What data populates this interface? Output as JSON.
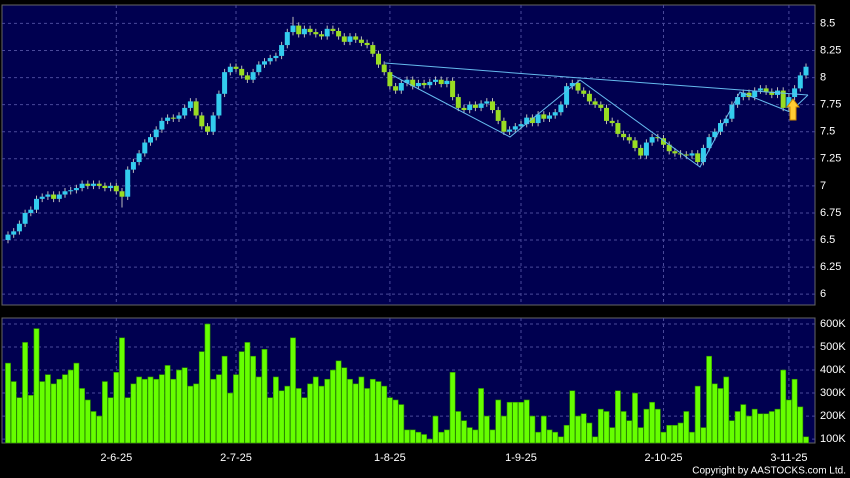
{
  "chart_data": {
    "type": "candlestick",
    "categories": [
      null,
      null,
      null,
      null,
      null,
      null,
      null,
      null,
      null,
      null,
      null,
      null,
      null,
      null,
      null,
      null,
      null,
      null,
      null,
      "2-6-25",
      null,
      null,
      null,
      null,
      null,
      null,
      null,
      null,
      null,
      null,
      null,
      null,
      null,
      null,
      null,
      null,
      null,
      null,
      null,
      null,
      "2-7-25",
      null,
      null,
      null,
      null,
      null,
      null,
      null,
      null,
      null,
      null,
      null,
      null,
      null,
      null,
      null,
      null,
      null,
      null,
      null,
      null,
      null,
      null,
      null,
      null,
      null,
      null,
      "1-8-25",
      null,
      null,
      null,
      null,
      null,
      null,
      null,
      null,
      null,
      null,
      null,
      null,
      null,
      null,
      null,
      null,
      null,
      null,
      null,
      null,
      null,
      null,
      "1-9-25",
      null,
      null,
      null,
      null,
      null,
      null,
      null,
      null,
      null,
      null,
      null,
      null,
      null,
      null,
      null,
      null,
      null,
      null,
      null,
      null,
      null,
      null,
      null,
      null,
      "2-10-25",
      null,
      null,
      null,
      null,
      null,
      null,
      null,
      null,
      null,
      null,
      null,
      null,
      null,
      null,
      null,
      null,
      null,
      null,
      null,
      null,
      null,
      "3-11-25",
      null,
      null,
      null
    ],
    "open": [
      6.5,
      6.55,
      6.58,
      6.65,
      6.75,
      6.78,
      6.88,
      6.9,
      6.92,
      6.88,
      6.92,
      6.95,
      6.96,
      6.98,
      7.02,
      7.0,
      7.02,
      7.0,
      6.98,
      7.0,
      6.95,
      6.9,
      7.15,
      7.22,
      7.3,
      7.4,
      7.45,
      7.52,
      7.6,
      7.63,
      7.62,
      7.65,
      7.72,
      7.78,
      7.65,
      7.55,
      7.5,
      7.65,
      7.85,
      8.05,
      8.1,
      8.08,
      8.02,
      7.98,
      8.05,
      8.12,
      8.15,
      8.18,
      8.2,
      8.3,
      8.42,
      8.48,
      8.4,
      8.45,
      8.42,
      8.4,
      8.38,
      8.45,
      8.43,
      8.38,
      8.33,
      8.38,
      8.35,
      8.32,
      8.3,
      8.22,
      8.12,
      8.05,
      7.92,
      7.88,
      7.95,
      7.98,
      7.92,
      7.95,
      7.93,
      7.96,
      7.98,
      7.94,
      7.97,
      7.82,
      7.72,
      7.7,
      7.75,
      7.72,
      7.76,
      7.78,
      7.7,
      7.6,
      7.5,
      7.52,
      7.55,
      7.57,
      7.63,
      7.58,
      7.66,
      7.62,
      7.65,
      7.68,
      7.75,
      7.92,
      7.95,
      7.88,
      7.85,
      7.78,
      7.75,
      7.72,
      7.6,
      7.58,
      7.48,
      7.45,
      7.42,
      7.35,
      7.28,
      7.4,
      7.45,
      7.44,
      7.38,
      7.32,
      7.3,
      7.29,
      7.28,
      7.3,
      7.22,
      7.35,
      7.45,
      7.5,
      7.58,
      7.62,
      7.75,
      7.82,
      7.86,
      7.82,
      7.88,
      7.9,
      7.87,
      7.84,
      7.88,
      7.72,
      7.82,
      7.9,
      8.02
    ],
    "high": [
      6.58,
      6.61,
      6.68,
      6.78,
      6.81,
      6.91,
      6.93,
      6.95,
      6.95,
      6.95,
      6.98,
      6.99,
      7.01,
      7.05,
      7.05,
      7.05,
      7.05,
      7.03,
      7.03,
      7.03,
      6.98,
      7.18,
      7.25,
      7.33,
      7.43,
      7.48,
      7.55,
      7.63,
      7.66,
      7.66,
      7.68,
      7.75,
      7.81,
      7.81,
      7.68,
      7.58,
      7.68,
      7.88,
      8.08,
      8.13,
      8.13,
      8.11,
      8.05,
      8.08,
      8.15,
      8.18,
      8.21,
      8.23,
      8.33,
      8.45,
      8.56,
      8.51,
      8.48,
      8.48,
      8.45,
      8.43,
      8.48,
      8.48,
      8.46,
      8.41,
      8.41,
      8.41,
      8.38,
      8.35,
      8.33,
      8.25,
      8.15,
      8.08,
      7.95,
      7.98,
      8.01,
      8.01,
      7.98,
      7.98,
      7.99,
      8.01,
      8.01,
      8.0,
      8.0,
      7.85,
      7.75,
      7.78,
      7.78,
      7.79,
      7.81,
      7.81,
      7.73,
      7.63,
      7.55,
      7.58,
      7.6,
      7.66,
      7.66,
      7.69,
      7.69,
      7.68,
      7.71,
      7.78,
      7.95,
      7.98,
      7.98,
      7.91,
      7.88,
      7.81,
      7.78,
      7.75,
      7.63,
      7.61,
      7.51,
      7.48,
      7.45,
      7.38,
      7.43,
      7.48,
      7.48,
      7.47,
      7.41,
      7.35,
      7.33,
      7.32,
      7.33,
      7.33,
      7.38,
      7.48,
      7.53,
      7.61,
      7.65,
      7.78,
      7.85,
      7.89,
      7.89,
      7.91,
      7.93,
      7.93,
      7.9,
      7.91,
      7.91,
      7.85,
      7.93,
      8.05,
      8.13
    ],
    "low": [
      6.47,
      6.52,
      6.55,
      6.62,
      6.72,
      6.75,
      6.85,
      6.87,
      6.85,
      6.85,
      6.89,
      6.92,
      6.93,
      6.95,
      6.97,
      6.97,
      6.97,
      6.95,
      6.95,
      6.92,
      6.8,
      6.87,
      7.12,
      7.19,
      7.27,
      7.37,
      7.42,
      7.49,
      7.57,
      7.59,
      7.59,
      7.62,
      7.69,
      7.62,
      7.52,
      7.47,
      7.47,
      7.62,
      7.82,
      8.02,
      8.05,
      7.99,
      7.95,
      7.95,
      8.02,
      8.09,
      8.12,
      8.15,
      8.17,
      8.27,
      8.39,
      8.37,
      8.37,
      8.39,
      8.37,
      8.35,
      8.35,
      8.4,
      8.35,
      8.3,
      8.3,
      8.32,
      8.29,
      8.27,
      8.19,
      8.09,
      8.02,
      7.89,
      7.85,
      7.85,
      7.92,
      7.89,
      7.89,
      7.9,
      7.9,
      7.93,
      7.91,
      7.91,
      7.79,
      7.69,
      7.67,
      7.67,
      7.69,
      7.69,
      7.73,
      7.67,
      7.57,
      7.47,
      7.47,
      7.49,
      7.52,
      7.54,
      7.55,
      7.55,
      7.59,
      7.59,
      7.62,
      7.65,
      7.72,
      7.89,
      7.85,
      7.82,
      7.75,
      7.72,
      7.69,
      7.57,
      7.55,
      7.45,
      7.42,
      7.39,
      7.32,
      7.25,
      7.25,
      7.37,
      7.41,
      7.35,
      7.29,
      7.27,
      7.26,
      7.25,
      7.25,
      7.19,
      7.19,
      7.32,
      7.42,
      7.47,
      7.55,
      7.59,
      7.72,
      7.79,
      7.79,
      7.79,
      7.85,
      7.84,
      7.81,
      7.81,
      7.69,
      7.69,
      7.79,
      7.87,
      7.99
    ],
    "close": [
      6.55,
      6.58,
      6.65,
      6.75,
      6.78,
      6.88,
      6.9,
      6.92,
      6.88,
      6.92,
      6.95,
      6.96,
      6.98,
      7.02,
      7.0,
      7.02,
      7.0,
      6.98,
      7.0,
      6.95,
      6.9,
      7.15,
      7.22,
      7.3,
      7.4,
      7.45,
      7.52,
      7.6,
      7.63,
      7.62,
      7.65,
      7.72,
      7.78,
      7.65,
      7.55,
      7.5,
      7.65,
      7.85,
      8.05,
      8.1,
      8.08,
      8.02,
      7.98,
      8.05,
      8.12,
      8.15,
      8.18,
      8.2,
      8.3,
      8.42,
      8.48,
      8.4,
      8.45,
      8.42,
      8.4,
      8.38,
      8.45,
      8.43,
      8.38,
      8.33,
      8.38,
      8.35,
      8.32,
      8.3,
      8.22,
      8.12,
      8.05,
      7.92,
      7.88,
      7.95,
      7.98,
      7.92,
      7.95,
      7.93,
      7.96,
      7.98,
      7.94,
      7.97,
      7.82,
      7.72,
      7.7,
      7.75,
      7.72,
      7.76,
      7.78,
      7.7,
      7.6,
      7.5,
      7.52,
      7.55,
      7.57,
      7.63,
      7.58,
      7.66,
      7.62,
      7.65,
      7.68,
      7.75,
      7.92,
      7.95,
      7.88,
      7.85,
      7.78,
      7.75,
      7.72,
      7.6,
      7.58,
      7.48,
      7.45,
      7.42,
      7.35,
      7.28,
      7.4,
      7.45,
      7.44,
      7.38,
      7.32,
      7.3,
      7.29,
      7.28,
      7.3,
      7.22,
      7.35,
      7.45,
      7.5,
      7.58,
      7.62,
      7.75,
      7.82,
      7.86,
      7.82,
      7.88,
      7.9,
      7.87,
      7.84,
      7.88,
      7.72,
      7.82,
      7.9,
      8.02,
      8.1
    ],
    "volume": [
      430000,
      350000,
      280000,
      520000,
      290000,
      580000,
      350000,
      380000,
      340000,
      360000,
      380000,
      400000,
      430000,
      320000,
      270000,
      220000,
      200000,
      350000,
      280000,
      390000,
      540000,
      280000,
      340000,
      370000,
      360000,
      370000,
      360000,
      380000,
      420000,
      360000,
      400000,
      410000,
      330000,
      340000,
      480000,
      600000,
      360000,
      380000,
      460000,
      300000,
      380000,
      480000,
      520000,
      460000,
      370000,
      490000,
      280000,
      370000,
      310000,
      330000,
      540000,
      320000,
      280000,
      340000,
      370000,
      330000,
      360000,
      400000,
      440000,
      410000,
      360000,
      340000,
      370000,
      320000,
      360000,
      350000,
      330000,
      280000,
      270000,
      250000,
      140000,
      140000,
      130000,
      120000,
      100000,
      200000,
      130000,
      140000,
      390000,
      220000,
      180000,
      150000,
      140000,
      320000,
      200000,
      140000,
      270000,
      200000,
      260000,
      260000,
      260000,
      270000,
      200000,
      130000,
      200000,
      140000,
      130000,
      110000,
      160000,
      310000,
      200000,
      210000,
      170000,
      110000,
      230000,
      220000,
      150000,
      310000,
      220000,
      180000,
      300000,
      150000,
      230000,
      260000,
      230000,
      130000,
      160000,
      160000,
      170000,
      220000,
      130000,
      330000,
      150000,
      460000,
      340000,
      320000,
      370000,
      180000,
      220000,
      250000,
      200000,
      230000,
      210000,
      210000,
      220000,
      230000,
      400000,
      270000,
      360000,
      240000,
      110000
    ],
    "up_color": "#33ccee",
    "down_color": "#99dd22",
    "volume_color": "#66ff00",
    "ylim": [
      5.9,
      8.67
    ],
    "yticks": [
      6,
      6.25,
      6.5,
      6.75,
      7,
      7.25,
      7.5,
      7.75,
      8,
      8.25,
      8.5
    ],
    "y2lim": [
      83000,
      626000
    ],
    "y2ticks": [
      {
        "value": 100000,
        "label": "100K"
      },
      {
        "value": 200000,
        "label": "200K"
      },
      {
        "value": 300000,
        "label": "300K"
      },
      {
        "value": 400000,
        "label": "400K"
      },
      {
        "value": 500000,
        "label": "500K"
      },
      {
        "value": 600000,
        "label": "600K"
      }
    ],
    "grid": true,
    "copyright": "Copyright by AASTOCKS.com Ltd."
  }
}
